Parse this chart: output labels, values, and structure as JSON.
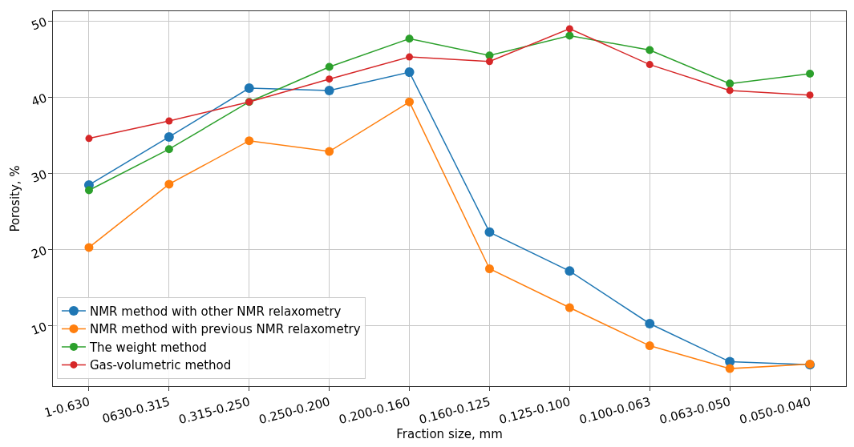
{
  "chart_data": {
    "type": "line",
    "xlabel": "Fraction size, mm",
    "ylabel": "Porosity, %",
    "categories": [
      "1-0.630",
      "0630-0.315",
      "0.315-0.250",
      "0.250-0.200",
      "0.200-0.160",
      "0.160-0.125",
      "0.125-0.100",
      "0.100-0.063",
      "0.063-0.050",
      "0.050-0.040"
    ],
    "series": [
      {
        "name": "NMR method with other NMR relaxometry",
        "color": "#1f77b4",
        "values": [
          28.5,
          34.8,
          41.2,
          40.9,
          43.3,
          22.3,
          17.2,
          10.3,
          5.3,
          4.9
        ]
      },
      {
        "name": "NMR method with previous NMR relaxometry",
        "color": "#ff7f0e",
        "values": [
          20.3,
          28.6,
          34.3,
          32.9,
          39.4,
          17.5,
          12.4,
          7.4,
          4.4,
          5.0
        ]
      },
      {
        "name": "The weight method",
        "color": "#2ca02c",
        "values": [
          27.8,
          33.2,
          39.4,
          44.0,
          47.7,
          45.5,
          48.1,
          46.2,
          41.8,
          43.1
        ]
      },
      {
        "name": "Gas-volumetric method",
        "color": "#d62728",
        "values": [
          34.6,
          36.9,
          39.4,
          42.4,
          45.3,
          44.7,
          49.0,
          44.3,
          40.9,
          40.3
        ]
      }
    ],
    "ylim": [
      2.1,
      51.3
    ],
    "yticks": [
      10,
      20,
      30,
      40,
      50
    ],
    "grid": true,
    "legend": "bottom left",
    "marker": "circle",
    "line_style": "solid"
  }
}
